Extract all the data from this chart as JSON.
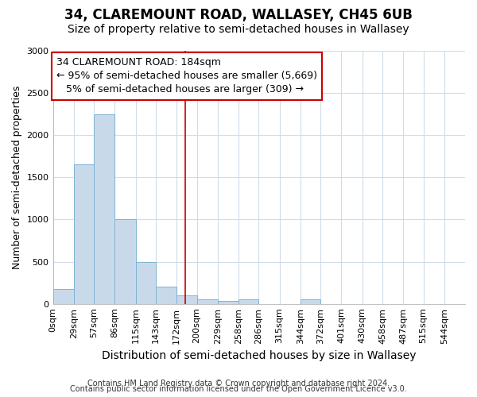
{
  "title": "34, CLAREMOUNT ROAD, WALLASEY, CH45 6UB",
  "subtitle": "Size of property relative to semi-detached houses in Wallasey",
  "xlabel": "Distribution of semi-detached houses by size in Wallasey",
  "ylabel": "Number of semi-detached properties",
  "bin_edges": [
    0,
    29,
    57,
    86,
    115,
    143,
    172,
    200,
    229,
    258,
    286,
    315,
    344,
    372,
    401,
    430,
    458,
    487,
    515,
    544,
    573
  ],
  "bar_heights": [
    175,
    1650,
    2250,
    1000,
    500,
    200,
    100,
    50,
    30,
    50,
    0,
    0,
    50,
    0,
    0,
    0,
    0,
    0,
    0,
    0
  ],
  "bar_color": "#c8daea",
  "bar_edge_color": "#7fb3d3",
  "property_size": 184,
  "vline_color": "#cc0000",
  "annotation_line1": "34 CLAREMOUNT ROAD: 184sqm",
  "annotation_line2": "← 95% of semi-detached houses are smaller (5,669)",
  "annotation_line3": "   5% of semi-detached houses are larger (309) →",
  "annotation_box_color": "#ffffff",
  "annotation_box_edge_color": "#cc0000",
  "ylim": [
    0,
    3000
  ],
  "yticks": [
    0,
    500,
    1000,
    1500,
    2000,
    2500,
    3000
  ],
  "footer_lines": [
    "Contains HM Land Registry data © Crown copyright and database right 2024.",
    "Contains public sector information licensed under the Open Government Licence v3.0."
  ],
  "bg_color": "#ffffff",
  "plot_bg_color": "#ffffff",
  "grid_color": "#d0dce8",
  "title_fontsize": 12,
  "subtitle_fontsize": 10,
  "tick_fontsize": 8,
  "ylabel_fontsize": 9,
  "xlabel_fontsize": 10,
  "footer_fontsize": 7
}
